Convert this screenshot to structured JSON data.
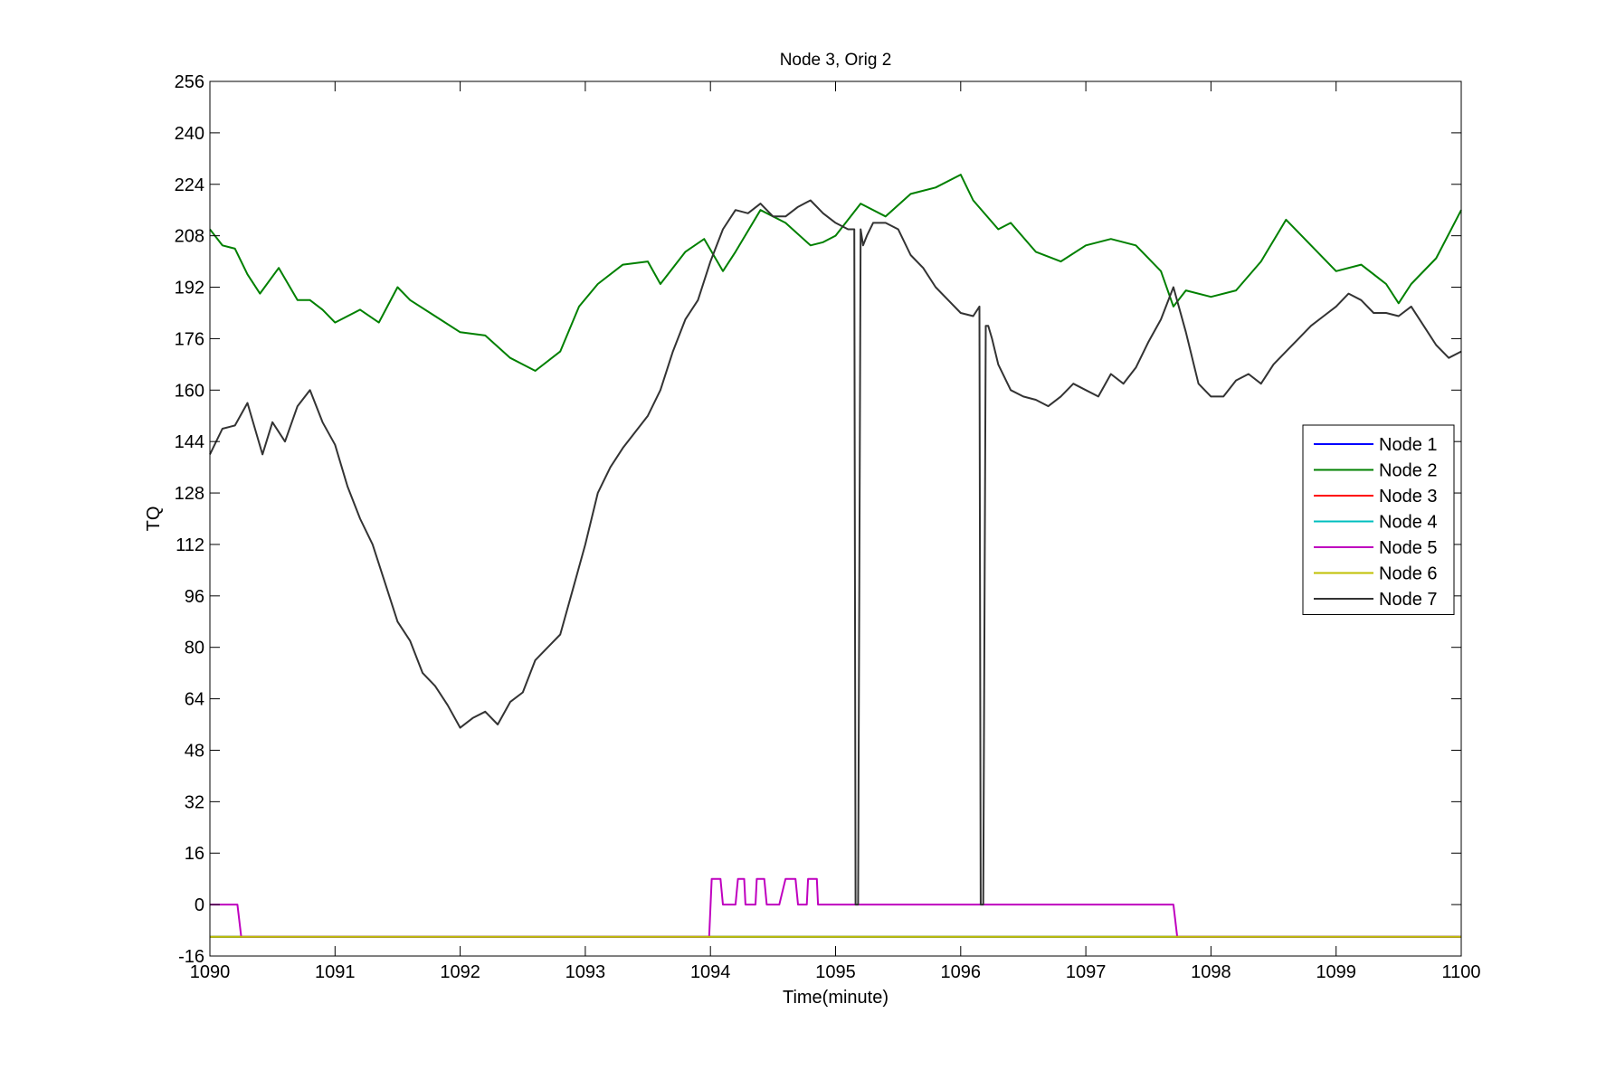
{
  "chart_data": {
    "type": "line",
    "title": "Node 3, Orig 2",
    "xlabel": "Time(minute)",
    "ylabel": "TQ",
    "xlim": [
      1090,
      1100
    ],
    "ylim": [
      -16,
      256
    ],
    "xticks": [
      1090,
      1091,
      1092,
      1093,
      1094,
      1095,
      1096,
      1097,
      1098,
      1099,
      1100
    ],
    "yticks": [
      -16,
      0,
      16,
      32,
      48,
      64,
      80,
      96,
      112,
      128,
      144,
      160,
      176,
      192,
      208,
      224,
      240,
      256
    ],
    "grid": false,
    "legend_position": "right-middle",
    "series": [
      {
        "name": "Node  1",
        "color": "#0000ff",
        "x": [
          1090,
          1100
        ],
        "y": [
          -10,
          -10
        ]
      },
      {
        "name": "Node  2",
        "color": "#008000",
        "x": [
          1090.0,
          1090.1,
          1090.2,
          1090.3,
          1090.4,
          1090.55,
          1090.7,
          1090.8,
          1090.9,
          1091.0,
          1091.2,
          1091.35,
          1091.5,
          1091.6,
          1091.8,
          1092.0,
          1092.2,
          1092.4,
          1092.5,
          1092.6,
          1092.8,
          1092.95,
          1093.1,
          1093.3,
          1093.5,
          1093.6,
          1093.8,
          1093.95,
          1094.1,
          1094.2,
          1094.4,
          1094.6,
          1094.8,
          1094.9,
          1095.0,
          1095.2,
          1095.4,
          1095.6,
          1095.8,
          1096.0,
          1096.1,
          1096.3,
          1096.4,
          1096.6,
          1096.8,
          1097.0,
          1097.2,
          1097.4,
          1097.6,
          1097.7,
          1097.8,
          1098.0,
          1098.2,
          1098.4,
          1098.6,
          1098.8,
          1099.0,
          1099.2,
          1099.4,
          1099.5,
          1099.6,
          1099.8,
          1100.0
        ],
        "y": [
          210,
          205,
          204,
          196,
          190,
          198,
          188,
          188,
          185,
          181,
          185,
          181,
          192,
          188,
          183,
          178,
          177,
          170,
          168,
          166,
          172,
          186,
          193,
          199,
          200,
          193,
          203,
          207,
          197,
          203,
          216,
          212,
          205,
          206,
          208,
          218,
          214,
          221,
          223,
          227,
          219,
          210,
          212,
          203,
          200,
          205,
          207,
          205,
          197,
          186,
          191,
          189,
          191,
          200,
          213,
          205,
          197,
          199,
          193,
          187,
          193,
          201,
          216
        ]
      },
      {
        "name": "Node  3",
        "color": "#ff0000",
        "x": [
          1090,
          1100
        ],
        "y": [
          -10,
          -10
        ]
      },
      {
        "name": "Node  4",
        "color": "#00bfbf",
        "x": [
          1090,
          1100
        ],
        "y": [
          -10,
          -10
        ]
      },
      {
        "name": "Node  5",
        "color": "#bf00bf",
        "x": [
          1090.0,
          1090.22,
          1090.25,
          1093.99,
          1094.01,
          1094.08,
          1094.1,
          1094.2,
          1094.22,
          1094.27,
          1094.28,
          1094.36,
          1094.37,
          1094.43,
          1094.45,
          1094.55,
          1094.6,
          1094.68,
          1094.7,
          1094.77,
          1094.78,
          1094.85,
          1094.86,
          1095.5,
          1097.7,
          1097.73,
          1100.0
        ],
        "y": [
          0,
          0,
          -10,
          -10,
          8,
          8,
          0,
          0,
          8,
          8,
          0,
          0,
          8,
          8,
          0,
          0,
          8,
          8,
          0,
          0,
          8,
          8,
          0,
          0,
          0,
          -10,
          -10
        ]
      },
      {
        "name": "Node  6",
        "color": "#bfbf00",
        "x": [
          1090,
          1100
        ],
        "y": [
          -10,
          -10
        ]
      },
      {
        "name": "Node  7",
        "color": "#333333",
        "x": [
          1090.0,
          1090.1,
          1090.2,
          1090.3,
          1090.42,
          1090.5,
          1090.6,
          1090.7,
          1090.8,
          1090.9,
          1091.0,
          1091.1,
          1091.2,
          1091.3,
          1091.4,
          1091.5,
          1091.6,
          1091.7,
          1091.8,
          1091.9,
          1092.0,
          1092.1,
          1092.2,
          1092.3,
          1092.4,
          1092.5,
          1092.6,
          1092.7,
          1092.8,
          1092.9,
          1093.0,
          1093.1,
          1093.2,
          1093.3,
          1093.4,
          1093.5,
          1093.6,
          1093.7,
          1093.8,
          1093.9,
          1094.0,
          1094.1,
          1094.2,
          1094.3,
          1094.4,
          1094.5,
          1094.6,
          1094.7,
          1094.8,
          1094.9,
          1095.0,
          1095.1,
          1095.15,
          1095.16,
          1095.18,
          1095.2,
          1095.22,
          1095.25,
          1095.3,
          1095.4,
          1095.5,
          1095.6,
          1095.7,
          1095.8,
          1095.9,
          1096.0,
          1096.1,
          1096.15,
          1096.16,
          1096.18,
          1096.2,
          1096.22,
          1096.25,
          1096.3,
          1096.4,
          1096.5,
          1096.6,
          1096.7,
          1096.8,
          1096.9,
          1097.0,
          1097.1,
          1097.2,
          1097.3,
          1097.4,
          1097.5,
          1097.6,
          1097.7,
          1097.8,
          1097.9,
          1098.0,
          1098.1,
          1098.2,
          1098.3,
          1098.4,
          1098.5,
          1098.6,
          1098.7,
          1098.8,
          1098.9,
          1099.0,
          1099.1,
          1099.2,
          1099.3,
          1099.4,
          1099.5,
          1099.6,
          1099.7,
          1099.8,
          1099.9,
          1100.0
        ],
        "y": [
          140,
          148,
          149,
          156,
          140,
          150,
          144,
          155,
          160,
          150,
          143,
          130,
          120,
          112,
          100,
          88,
          82,
          72,
          68,
          62,
          55,
          58,
          60,
          56,
          63,
          66,
          76,
          80,
          84,
          98,
          112,
          128,
          136,
          142,
          147,
          152,
          160,
          172,
          182,
          188,
          200,
          210,
          216,
          215,
          218,
          214,
          214,
          217,
          219,
          215,
          212,
          210,
          210,
          0,
          0,
          210,
          205,
          208,
          212,
          212,
          210,
          202,
          198,
          192,
          188,
          184,
          183,
          186,
          0,
          0,
          180,
          180,
          176,
          168,
          160,
          158,
          157,
          155,
          158,
          162,
          160,
          158,
          165,
          162,
          167,
          175,
          182,
          192,
          178,
          162,
          158,
          158,
          163,
          165,
          162,
          168,
          172,
          176,
          180,
          183,
          186,
          190,
          188,
          184,
          184,
          183,
          186,
          180,
          174,
          170,
          172
        ]
      }
    ]
  }
}
